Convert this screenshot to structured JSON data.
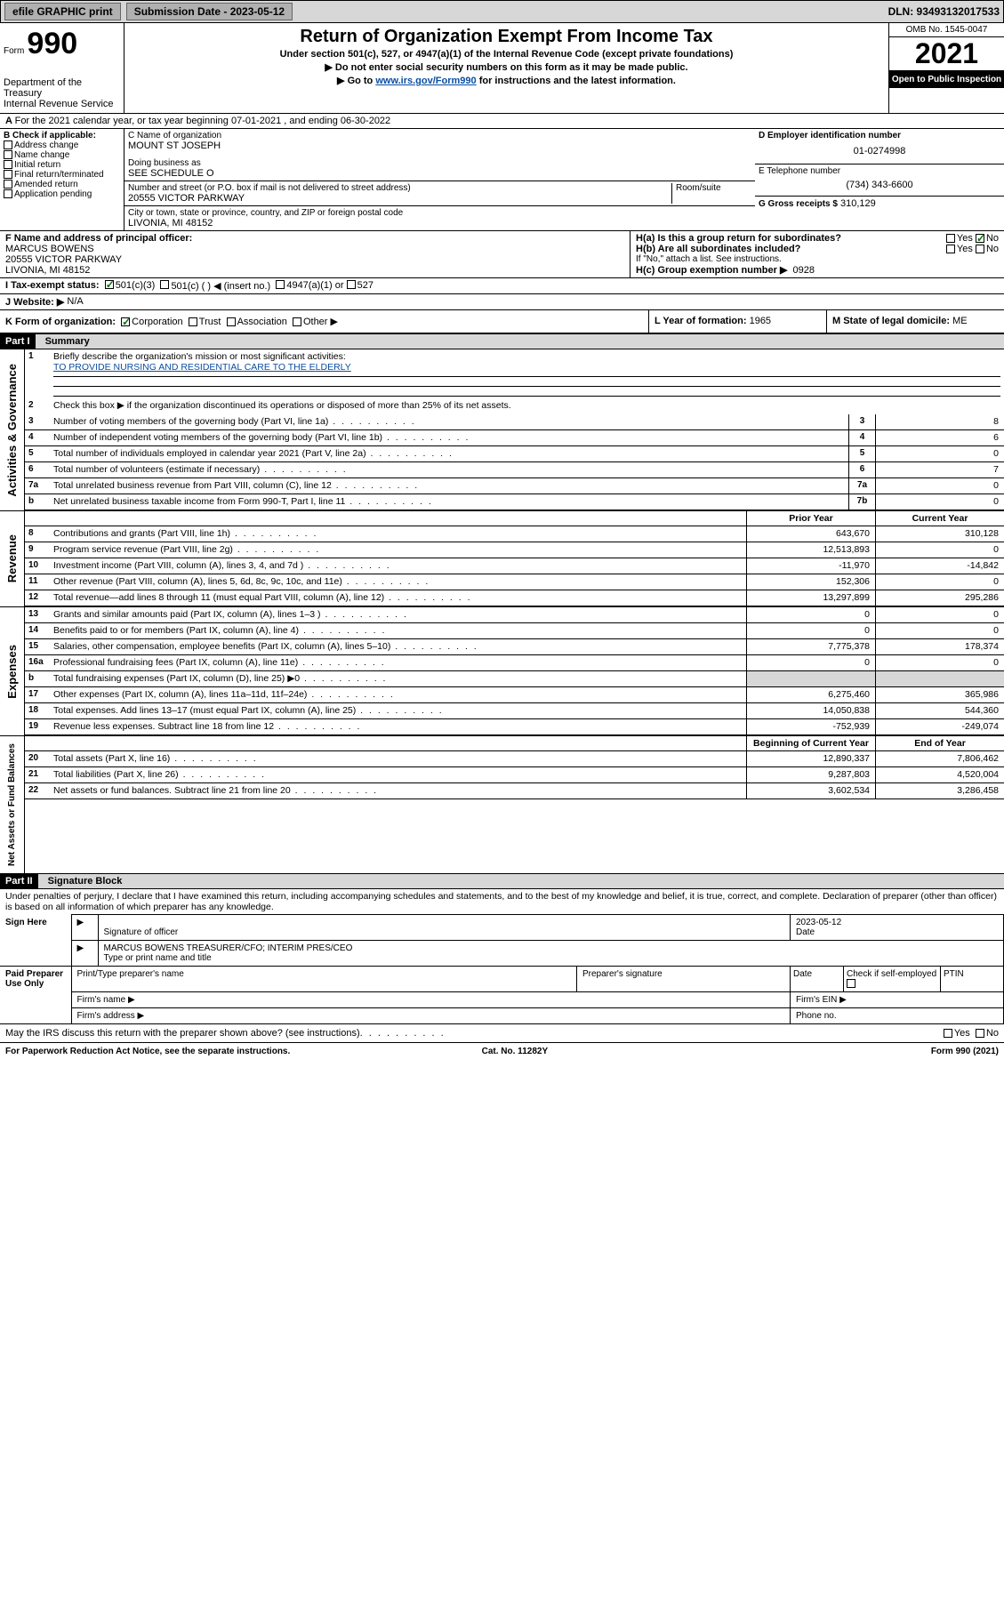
{
  "topbar": {
    "efile": "efile GRAPHIC print",
    "subdate_label": "Submission Date - 2023-05-12",
    "dln": "DLN: 93493132017533"
  },
  "header": {
    "form_word": "Form",
    "form_num": "990",
    "dept": "Department of the Treasury",
    "irs": "Internal Revenue Service",
    "title": "Return of Organization Exempt From Income Tax",
    "sub1": "Under section 501(c), 527, or 4947(a)(1) of the Internal Revenue Code (except private foundations)",
    "sub2": "▶ Do not enter social security numbers on this form as it may be made public.",
    "sub3_pre": "▶ Go to ",
    "sub3_link": "www.irs.gov/Form990",
    "sub3_post": " for instructions and the latest information.",
    "omb": "OMB No. 1545-0047",
    "year": "2021",
    "inspection": "Open to Public Inspection"
  },
  "lineA": "For the 2021 calendar year, or tax year beginning 07-01-2021  , and ending 06-30-2022",
  "boxB": {
    "title": "B Check if applicable:",
    "opts": [
      "Address change",
      "Name change",
      "Initial return",
      "Final return/terminated",
      "Amended return",
      "Application pending"
    ]
  },
  "boxC": {
    "label": "C Name of organization",
    "name": "MOUNT ST JOSEPH",
    "dba_label": "Doing business as",
    "dba": "SEE SCHEDULE O",
    "street_label": "Number and street (or P.O. box if mail is not delivered to street address)",
    "street": "20555 VICTOR PARKWAY",
    "room_label": "Room/suite",
    "city_label": "City or town, state or province, country, and ZIP or foreign postal code",
    "city": "LIVONIA, MI  48152"
  },
  "boxD": {
    "label": "D Employer identification number",
    "val": "01-0274998"
  },
  "boxE": {
    "label": "E Telephone number",
    "val": "(734) 343-6600"
  },
  "boxG": {
    "label": "G Gross receipts $",
    "val": "310,129"
  },
  "boxF": {
    "label": "F Name and address of principal officer:",
    "name": "MARCUS BOWENS",
    "addr1": "20555 VICTOR PARKWAY",
    "addr2": "LIVONIA, MI  48152"
  },
  "boxH": {
    "ha": "H(a)  Is this a group return for subordinates?",
    "hb": "H(b)  Are all subordinates included?",
    "hb_note": "If \"No,\" attach a list. See instructions.",
    "hc": "H(c)  Group exemption number ▶",
    "hc_val": "0928",
    "yes": "Yes",
    "no": "No"
  },
  "lineI": {
    "label": "I   Tax-exempt status:",
    "o1": "501(c)(3)",
    "o2": "501(c) (  ) ◀ (insert no.)",
    "o3": "4947(a)(1) or",
    "o4": "527"
  },
  "lineJ": {
    "label": "J   Website: ▶",
    "val": "N/A"
  },
  "lineK": {
    "label": "K Form of organization:",
    "o1": "Corporation",
    "o2": "Trust",
    "o3": "Association",
    "o4": "Other ▶"
  },
  "lineL": {
    "label": "L Year of formation:",
    "val": "1965"
  },
  "lineM": {
    "label": "M State of legal domicile:",
    "val": "ME"
  },
  "partI": {
    "hdr": "Part I",
    "title": "Summary"
  },
  "gov": {
    "side": "Activities & Governance",
    "l1": "Briefly describe the organization's mission or most significant activities:",
    "l1v": "TO PROVIDE NURSING AND RESIDENTIAL CARE TO THE ELDERLY",
    "l2": "Check this box ▶       if the organization discontinued its operations or disposed of more than 25% of its net assets.",
    "rows": [
      {
        "n": "3",
        "d": "Number of voting members of the governing body (Part VI, line 1a)",
        "b": "3",
        "v": "8"
      },
      {
        "n": "4",
        "d": "Number of independent voting members of the governing body (Part VI, line 1b)",
        "b": "4",
        "v": "6"
      },
      {
        "n": "5",
        "d": "Total number of individuals employed in calendar year 2021 (Part V, line 2a)",
        "b": "5",
        "v": "0"
      },
      {
        "n": "6",
        "d": "Total number of volunteers (estimate if necessary)",
        "b": "6",
        "v": "7"
      },
      {
        "n": "7a",
        "d": "Total unrelated business revenue from Part VIII, column (C), line 12",
        "b": "7a",
        "v": "0"
      },
      {
        "n": "b",
        "d": "Net unrelated business taxable income from Form 990-T, Part I, line 11",
        "b": "7b",
        "v": "0"
      }
    ]
  },
  "colhdr": {
    "prior": "Prior Year",
    "current": "Current Year",
    "beg": "Beginning of Current Year",
    "end": "End of Year"
  },
  "rev": {
    "side": "Revenue",
    "rows": [
      {
        "n": "8",
        "d": "Contributions and grants (Part VIII, line 1h)",
        "p": "643,670",
        "c": "310,128"
      },
      {
        "n": "9",
        "d": "Program service revenue (Part VIII, line 2g)",
        "p": "12,513,893",
        "c": "0"
      },
      {
        "n": "10",
        "d": "Investment income (Part VIII, column (A), lines 3, 4, and 7d )",
        "p": "-11,970",
        "c": "-14,842"
      },
      {
        "n": "11",
        "d": "Other revenue (Part VIII, column (A), lines 5, 6d, 8c, 9c, 10c, and 11e)",
        "p": "152,306",
        "c": "0"
      },
      {
        "n": "12",
        "d": "Total revenue—add lines 8 through 11 (must equal Part VIII, column (A), line 12)",
        "p": "13,297,899",
        "c": "295,286"
      }
    ]
  },
  "exp": {
    "side": "Expenses",
    "rows": [
      {
        "n": "13",
        "d": "Grants and similar amounts paid (Part IX, column (A), lines 1–3 )",
        "p": "0",
        "c": "0"
      },
      {
        "n": "14",
        "d": "Benefits paid to or for members (Part IX, column (A), line 4)",
        "p": "0",
        "c": "0"
      },
      {
        "n": "15",
        "d": "Salaries, other compensation, employee benefits (Part IX, column (A), lines 5–10)",
        "p": "7,775,378",
        "c": "178,374"
      },
      {
        "n": "16a",
        "d": "Professional fundraising fees (Part IX, column (A), line 11e)",
        "p": "0",
        "c": "0"
      },
      {
        "n": "b",
        "d": "Total fundraising expenses (Part IX, column (D), line 25) ▶0",
        "p": "",
        "c": "",
        "gray": true
      },
      {
        "n": "17",
        "d": "Other expenses (Part IX, column (A), lines 11a–11d, 11f–24e)",
        "p": "6,275,460",
        "c": "365,986"
      },
      {
        "n": "18",
        "d": "Total expenses. Add lines 13–17 (must equal Part IX, column (A), line 25)",
        "p": "14,050,838",
        "c": "544,360"
      },
      {
        "n": "19",
        "d": "Revenue less expenses. Subtract line 18 from line 12",
        "p": "-752,939",
        "c": "-249,074"
      }
    ]
  },
  "net": {
    "side": "Net Assets or Fund Balances",
    "rows": [
      {
        "n": "20",
        "d": "Total assets (Part X, line 16)",
        "p": "12,890,337",
        "c": "7,806,462"
      },
      {
        "n": "21",
        "d": "Total liabilities (Part X, line 26)",
        "p": "9,287,803",
        "c": "4,520,004"
      },
      {
        "n": "22",
        "d": "Net assets or fund balances. Subtract line 21 from line 20",
        "p": "3,602,534",
        "c": "3,286,458"
      }
    ]
  },
  "partII": {
    "hdr": "Part II",
    "title": "Signature Block"
  },
  "sig": {
    "decl": "Under penalties of perjury, I declare that I have examined this return, including accompanying schedules and statements, and to the best of my knowledge and belief, it is true, correct, and complete. Declaration of preparer (other than officer) is based on all information of which preparer has any knowledge.",
    "sign_here": "Sign Here",
    "sig_officer": "Signature of officer",
    "date": "Date",
    "date_val": "2023-05-12",
    "name": "MARCUS BOWENS  TREASURER/CFO; INTERIM PRES/CEO",
    "name_label": "Type or print name and title",
    "paid": "Paid Preparer Use Only",
    "pt_name": "Print/Type preparer's name",
    "pt_sig": "Preparer's signature",
    "pt_date": "Date",
    "pt_check": "Check        if self-employed",
    "ptin": "PTIN",
    "firm_name": "Firm's name   ▶",
    "firm_ein": "Firm's EIN ▶",
    "firm_addr": "Firm's address ▶",
    "phone": "Phone no.",
    "discuss": "May the IRS discuss this return with the preparer shown above? (see instructions)"
  },
  "footer": {
    "pra": "For Paperwork Reduction Act Notice, see the separate instructions.",
    "cat": "Cat. No. 11282Y",
    "form": "Form 990 (2021)"
  }
}
